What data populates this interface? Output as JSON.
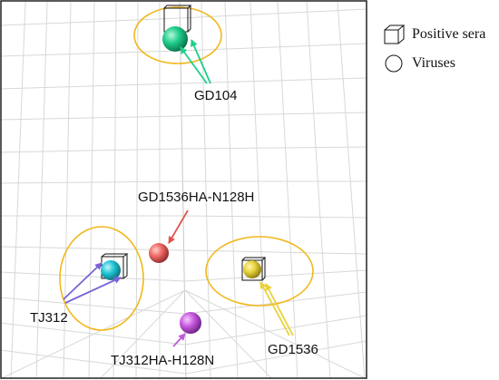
{
  "colors": {
    "gd104": "#1fcf8a",
    "tj312": "#22c6d6",
    "gd1536": "#e9d23c",
    "gd1536ha": "#f06a66",
    "tj312ha": "#c85ae0",
    "tj312_arrow": "#7a63d6",
    "tj312ha_arrow": "#c05ad8",
    "gd1536ha_arrow": "#e0534f",
    "ellipse": "#f0b81c",
    "grid": "#d8d8d8"
  },
  "labels": {
    "gd104": "GD104",
    "gd1536ha_n128h": "GD1536HA-N128H",
    "tj312": "TJ312",
    "tj312ha_h128n": "TJ312HA-H128N",
    "gd1536": "GD1536"
  },
  "legend": {
    "positive_sera": "Positive sera",
    "viruses": "Viruses",
    "positive_sera_icon": "cube-icon",
    "viruses_icon": "circle-icon"
  }
}
